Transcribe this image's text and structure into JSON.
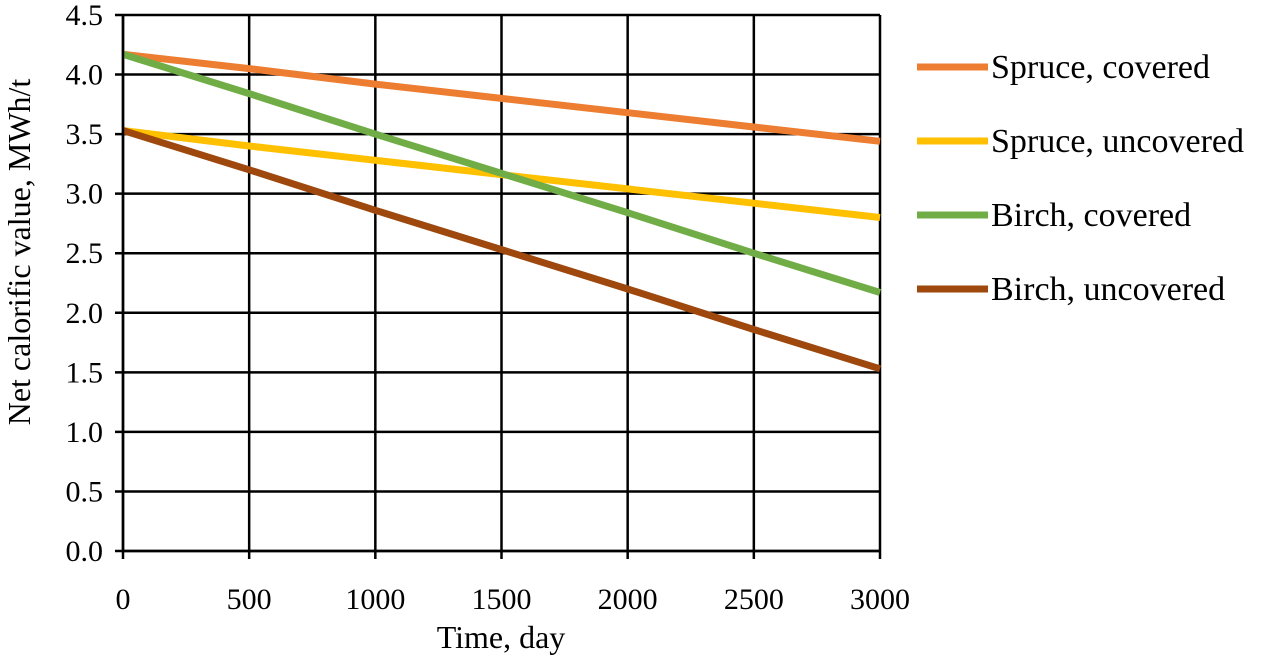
{
  "chart_data": {
    "type": "line",
    "xlabel": "Time, day",
    "ylabel": "Net calorific value, MWh/t",
    "xlim": [
      0,
      3000
    ],
    "ylim": [
      0,
      4.5
    ],
    "x_ticks": [
      "0",
      "500",
      "1000",
      "1500",
      "2000",
      "2500",
      "3000"
    ],
    "y_ticks": [
      "0.0",
      "0.5",
      "1.0",
      "1.5",
      "2.0",
      "2.5",
      "3.0",
      "3.5",
      "4.0",
      "4.5"
    ],
    "grid": true,
    "legend_position": "right",
    "series": [
      {
        "name": "Spruce, covered",
        "color": "#ED7D31",
        "x": [
          0,
          500,
          1000,
          1500,
          2000,
          2500,
          3000
        ],
        "y": [
          4.17,
          4.05,
          3.92,
          3.8,
          3.68,
          3.56,
          3.44
        ]
      },
      {
        "name": "Spruce, uncovered",
        "color": "#FFC000",
        "x": [
          0,
          500,
          1000,
          1500,
          2000,
          2500,
          3000
        ],
        "y": [
          3.53,
          3.4,
          3.28,
          3.16,
          3.04,
          2.92,
          2.8
        ]
      },
      {
        "name": "Birch, covered",
        "color": "#70AD47",
        "x": [
          0,
          500,
          1000,
          1500,
          2000,
          2500,
          3000
        ],
        "y": [
          4.17,
          3.84,
          3.5,
          3.17,
          2.84,
          2.5,
          2.17
        ]
      },
      {
        "name": "Birch, uncovered",
        "color": "#9E480E",
        "x": [
          0,
          500,
          1000,
          1500,
          2000,
          2500,
          3000
        ],
        "y": [
          3.53,
          3.2,
          2.86,
          2.53,
          2.2,
          1.86,
          1.53
        ]
      }
    ]
  }
}
